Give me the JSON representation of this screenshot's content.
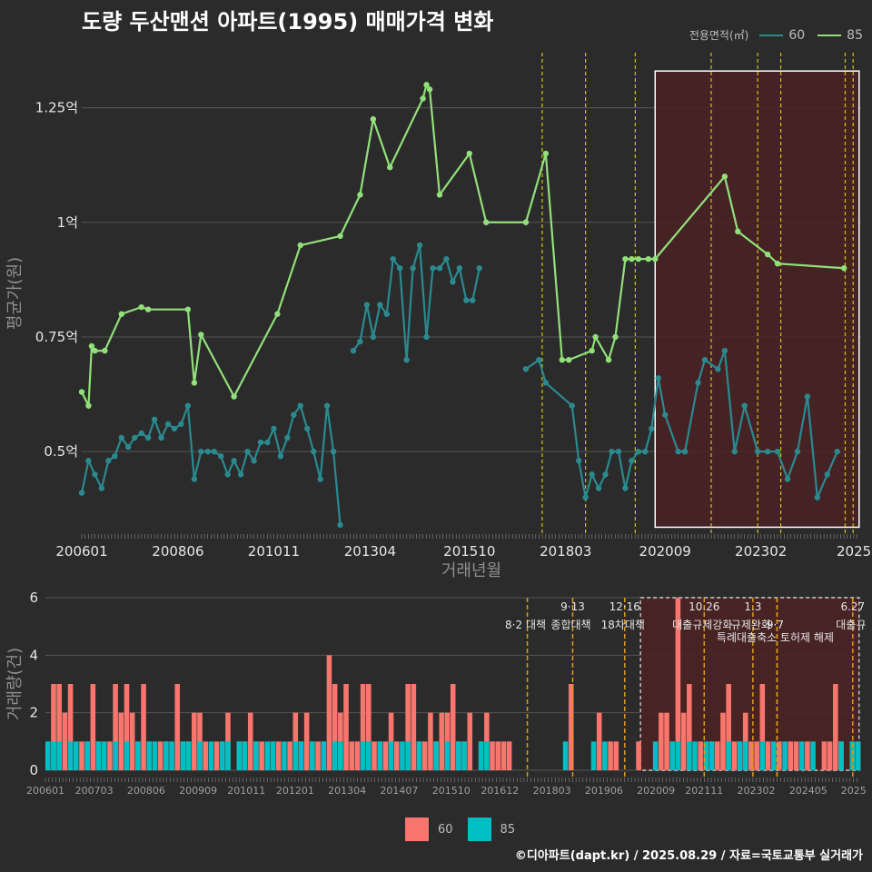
{
  "chart_data": {
    "type": "line",
    "title": "도량 두산맨션 아파트(1995) 매매가격 변화",
    "legend_title": "전용면적(㎡)",
    "legend": [
      "60",
      "85"
    ],
    "colors": {
      "s60_line": "#2a8a8f",
      "s85_line": "#92e07a",
      "bar60": "#f8766d",
      "bar85": "#00bfc4",
      "vline": "#d4c21a",
      "vline2": "#e09a1a",
      "highlight": "#4a2224"
    },
    "top": {
      "xlabel": "거래년월",
      "ylabel": "평균가(원)",
      "x_ticks": [
        "200601",
        "200806",
        "201011",
        "201304",
        "201510",
        "201803",
        "202009",
        "202302",
        "2025"
      ],
      "y_ticks": [
        "0.5억",
        "0.75억",
        "1억",
        "1.25억"
      ],
      "ylim": [
        0.32,
        1.37
      ],
      "series": [
        {
          "name": "85",
          "x": [
            2006.0,
            2006.17,
            2006.25,
            2006.33,
            2006.58,
            2007.0,
            2007.5,
            2007.67,
            2008.67,
            2008.83,
            2009.0,
            2009.83,
            2010.92,
            2011.5,
            2012.5,
            2013.0,
            2013.33,
            2013.75,
            2014.58,
            2014.67,
            2014.75,
            2015.0,
            2015.75,
            2016.17,
            2017.17,
            2017.67,
            2018.08,
            2018.25,
            2018.83,
            2018.92,
            2019.25,
            2019.42,
            2019.67,
            2019.83,
            2020.0,
            2020.25,
            2020.42,
            2022.17,
            2022.5,
            2023.25,
            2023.5,
            2025.17
          ],
          "values": [
            0.63,
            0.6,
            0.73,
            0.72,
            0.72,
            0.8,
            0.815,
            0.81,
            0.81,
            0.65,
            0.755,
            0.62,
            0.8,
            0.95,
            0.97,
            1.06,
            1.225,
            1.12,
            1.27,
            1.3,
            1.29,
            1.06,
            1.15,
            1.0,
            1.0,
            1.15,
            0.7,
            0.7,
            0.72,
            0.75,
            0.7,
            0.75,
            0.92,
            0.92,
            0.92,
            0.92,
            0.92,
            1.1,
            0.98,
            0.93,
            0.91,
            0.9
          ]
        },
        {
          "name": "60",
          "x": [
            2006.0,
            2006.17,
            2006.33,
            2006.5,
            2006.67,
            2006.83,
            2007.0,
            2007.17,
            2007.33,
            2007.5,
            2007.67,
            2007.83,
            2008.0,
            2008.17,
            2008.33,
            2008.5,
            2008.67,
            2008.83,
            2009.0,
            2009.17,
            2009.33,
            2009.5,
            2009.67,
            2009.83,
            2010.0,
            2010.17,
            2010.33,
            2010.5,
            2010.67,
            2010.83,
            2011.0,
            2011.17,
            2011.33,
            2011.5,
            2011.67,
            2011.83,
            2012.0,
            2012.17,
            2012.33,
            2012.5
          ],
          "values": [
            0.41,
            0.48,
            0.45,
            0.42,
            0.48,
            0.49,
            0.53,
            0.51,
            0.53,
            0.54,
            0.53,
            0.57,
            0.53,
            0.56,
            0.55,
            0.56,
            0.6,
            0.44,
            0.5,
            0.5,
            0.5,
            0.49,
            0.45,
            0.48,
            0.45,
            0.5,
            0.48,
            0.52,
            0.52,
            0.55,
            0.49,
            0.53,
            0.58,
            0.6,
            0.55,
            0.5,
            0.44,
            0.6,
            0.5,
            0.34
          ]
        },
        {
          "name": "60b",
          "x": [
            2012.83,
            2013.0,
            2013.17,
            2013.33,
            2013.5,
            2013.67,
            2013.83,
            2014.0,
            2014.17,
            2014.33,
            2014.5,
            2014.67,
            2014.83,
            2015.0,
            2015.17,
            2015.33,
            2015.5,
            2015.67,
            2015.83,
            2016.0
          ],
          "values": [
            0.72,
            0.74,
            0.82,
            0.75,
            0.82,
            0.8,
            0.92,
            0.9,
            0.7,
            0.9,
            0.95,
            0.75,
            0.9,
            0.9,
            0.92,
            0.87,
            0.9,
            0.83,
            0.83,
            0.9
          ]
        },
        {
          "name": "60c",
          "x": [
            2017.17,
            2017.5,
            2017.67,
            2018.33,
            2018.5,
            2018.67,
            2018.83,
            2019.0,
            2019.17,
            2019.33,
            2019.5,
            2019.67,
            2019.83,
            2020.0,
            2020.17,
            2020.33,
            2020.5,
            2020.67,
            2021.0,
            2021.17,
            2021.5,
            2021.67,
            2022.0,
            2022.17,
            2022.42,
            2022.67,
            2023.0,
            2023.25,
            2023.5,
            2023.75,
            2024.0,
            2024.25,
            2024.5,
            2024.75,
            2025.0
          ],
          "values": [
            0.68,
            0.7,
            0.65,
            0.6,
            0.48,
            0.4,
            0.45,
            0.42,
            0.45,
            0.5,
            0.5,
            0.42,
            0.48,
            0.5,
            0.5,
            0.55,
            0.66,
            0.58,
            0.5,
            0.5,
            0.65,
            0.7,
            0.68,
            0.72,
            0.5,
            0.6,
            0.5,
            0.5,
            0.5,
            0.44,
            0.5,
            0.62,
            0.4,
            0.45,
            0.5
          ]
        }
      ]
    },
    "bottom": {
      "ylabel": "거래량(건)",
      "y_ticks": [
        "0",
        "2",
        "4",
        "6"
      ],
      "ylim": [
        0,
        6
      ],
      "x_ticks": [
        "200601",
        "200703",
        "200806",
        "200909",
        "201011",
        "201201",
        "201304",
        "201407",
        "201510",
        "201612",
        "201803",
        "201906",
        "202009",
        "202111",
        "202302",
        "202405",
        "2025"
      ],
      "bars60": [
        0,
        3,
        3,
        2,
        3,
        0,
        1,
        1,
        3,
        1,
        0,
        1,
        3,
        2,
        3,
        2,
        1,
        3,
        1,
        0,
        1,
        1,
        0,
        3,
        1,
        1,
        2,
        2,
        1,
        0,
        1,
        1,
        2,
        0,
        1,
        1,
        2,
        1,
        1,
        0,
        1,
        1,
        0,
        1,
        2,
        1,
        2,
        1,
        1,
        1,
        4,
        3,
        2,
        3,
        1,
        1,
        3,
        3,
        1,
        1,
        1,
        2,
        1,
        0,
        3,
        3,
        1,
        1,
        2,
        1,
        2,
        2,
        3,
        1,
        1,
        2,
        0,
        1,
        2,
        1,
        1,
        1,
        1,
        0,
        0,
        0,
        0,
        0,
        0,
        0,
        0,
        0,
        0,
        3,
        0,
        0,
        0,
        0,
        2,
        0,
        1,
        1,
        0,
        0,
        0,
        1,
        0,
        0,
        0,
        2,
        2,
        1,
        6,
        2,
        3,
        0,
        1,
        0,
        1,
        1,
        2,
        3,
        1,
        1,
        2,
        1,
        1,
        3,
        1,
        0,
        1,
        0,
        1,
        1,
        0,
        1,
        0,
        0,
        1,
        1,
        3,
        1,
        0,
        1,
        1
      ],
      "bars85": [
        1,
        1,
        1,
        0,
        1,
        1,
        0,
        1,
        0,
        1,
        1,
        0,
        1,
        0,
        1,
        0,
        1,
        0,
        1,
        1,
        0,
        1,
        1,
        0,
        1,
        1,
        0,
        1,
        0,
        1,
        0,
        1,
        1,
        0,
        1,
        1,
        0,
        1,
        0,
        1,
        1,
        0,
        1,
        0,
        1,
        1,
        0,
        1,
        0,
        1,
        0,
        1,
        1,
        0,
        0,
        0,
        1,
        1,
        0,
        1,
        0,
        1,
        0,
        1,
        1,
        0,
        1,
        0,
        0,
        1,
        0,
        1,
        0,
        1,
        1,
        0,
        0,
        1,
        1,
        0,
        0,
        0,
        0,
        0,
        0,
        0,
        0,
        0,
        0,
        0,
        0,
        0,
        1,
        0,
        0,
        0,
        0,
        1,
        0,
        1,
        0,
        0,
        0,
        0,
        0,
        0,
        0,
        0,
        1,
        0,
        0,
        1,
        1,
        0,
        1,
        1,
        0,
        1,
        1,
        0,
        0,
        1,
        0,
        1,
        1,
        0,
        0,
        1,
        0,
        1,
        0,
        1,
        0,
        0,
        1,
        0,
        1,
        0,
        0,
        0,
        0,
        1,
        0,
        1,
        1
      ],
      "annotations": [
        {
          "x": 2017.58,
          "top": "",
          "bottom": "8·2 대책"
        },
        {
          "x": 2018.67,
          "top": "9·13",
          "bottom": "종합대책"
        },
        {
          "x": 2019.92,
          "top": "12·16",
          "bottom": "18차대책"
        },
        {
          "x": 2021.83,
          "top": "10.26",
          "bottom": "대출규제강화"
        },
        {
          "x": 2023.0,
          "top": "1.3",
          "bottom": "규제완화"
        },
        {
          "x": 2023.58,
          "top": "",
          "bottom": "9·7"
        },
        {
          "x": 2023.58,
          "top": "",
          "bottom": "특례대출축소 토허제 해제"
        },
        {
          "x": 2025.4,
          "top": "6.27",
          "bottom": "대출규"
        }
      ]
    },
    "credit": "©디아파트(dapt.kr) / 2025.08.29 / 자료=국토교통부 실거래가"
  }
}
